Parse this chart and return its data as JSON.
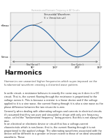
{
  "page_title_top": "Harmonics and Harmonic Frequency in AC Circuits",
  "heading": "Harmonics",
  "subtitle": "Harmonics are unwanted higher frequencies which super-imposed on the fundamental waveform creating a distorted wave pattern.",
  "body1": "In ac/dc circuit, a resistance behaves in exactly the same way as it does in a DC circuit. That is, the current flowing through the resistance is proportional to the voltage across it. This is because a resistor is a linear device and if the voltage applied to it is a sine wave, the current flowing through it is also a sine wave as the phase difference between the two sinusoids is zero.",
  "body2": "Generally when dealing with alternating voltages and currents in electrical circuits it's assumed that they are pure and sinusoidal in shape with only one frequency value, called the \"fundamental frequency\" being present. But this is not always the case.",
  "body3": "In an electrical or electronic device or circuit that has a voltage-current characteristic which is non-linear, that is, the current flowing through it is not proportional to the applied voltage. The alternating waveforms associated with the device will be different to a greater or lesser extent to those of an ideal sinusoidal waveform. These",
  "annotation": "Sinusoidal Waveform\nV = Vmax(sin ωt)",
  "label_total": "Total Period T",
  "label_cycle": "One Cycle λ",
  "ylabel_pos": "+Vmax",
  "ylabel_neg": "-Vmax",
  "xtick_labels": [
    "0°",
    "90°",
    "180°",
    "270°",
    "360°"
  ],
  "sine_color": "#2060a0",
  "bg_color": "#ffffff",
  "plot_bg": "#f0f0f0",
  "grid_color": "#cccccc",
  "text_dark": "#111111",
  "text_body": "#333333",
  "text_light": "#777777",
  "top_title_color": "#aaaaaa"
}
